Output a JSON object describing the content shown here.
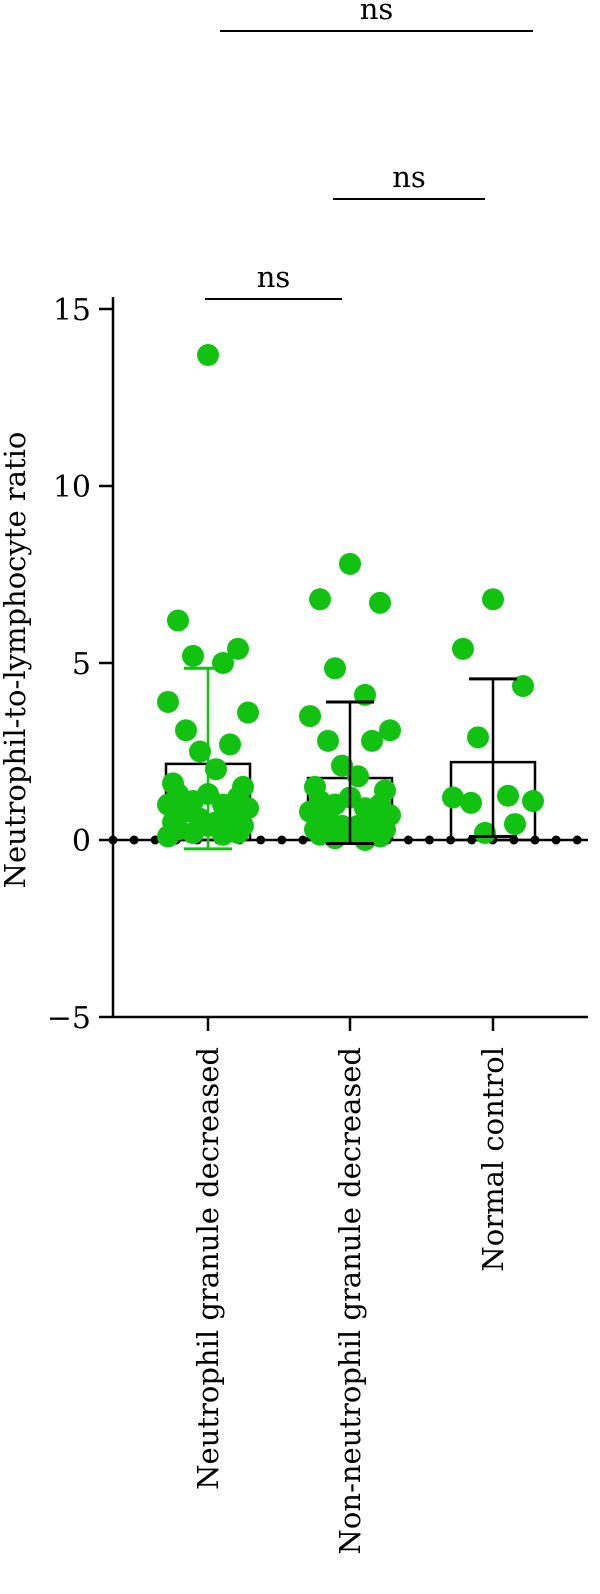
{
  "chart_data": {
    "type": "bar",
    "title": "",
    "xlabel": "",
    "ylabel": "Neutrophil-to-lymphocyte ratio",
    "ylim": [
      -5,
      15
    ],
    "yticks": [
      -5,
      0,
      5,
      10,
      15
    ],
    "ytick_labels": [
      "−5",
      "0",
      "5",
      "10",
      "15"
    ],
    "categories": [
      "Neutrophil granule decreased",
      "Non-neutrophil granule decreased",
      "Normal control"
    ],
    "series": [
      {
        "values": [
          2.15,
          1.75,
          2.2
        ],
        "error": [
          {
            "low": -0.25,
            "high": 4.85
          },
          {
            "low": -0.1,
            "high": 3.9
          },
          {
            "low": 0.1,
            "high": 4.55
          }
        ],
        "points": [
          [
            13.7,
            6.2,
            5.4,
            5.2,
            5.0,
            3.9,
            3.6,
            3.1,
            2.7,
            2.5,
            2.0,
            1.6,
            1.5,
            1.3,
            1.3,
            1.2,
            1.1,
            1.0,
            1.0,
            0.9,
            0.8,
            0.7,
            0.6,
            0.5,
            0.5,
            0.4,
            0.4,
            0.3,
            0.2,
            0.2,
            0.15,
            0.1
          ],
          [
            7.8,
            6.8,
            6.7,
            4.85,
            4.1,
            3.5,
            3.1,
            2.8,
            2.8,
            2.1,
            1.8,
            1.5,
            1.4,
            1.2,
            1.1,
            1.0,
            1.0,
            0.9,
            0.8,
            0.7,
            0.6,
            0.5,
            0.4,
            0.4,
            0.3,
            0.3,
            0.2,
            0.15,
            0.1,
            0.05,
            0.0
          ],
          [
            6.8,
            5.4,
            4.35,
            2.9,
            1.25,
            1.2,
            1.1,
            1.05,
            0.45,
            0.2
          ]
        ]
      }
    ],
    "zero_line": "dotted",
    "comparisons": [
      {
        "from": 0,
        "to": 1,
        "label": "ns"
      },
      {
        "from": 1,
        "to": 2,
        "label": "ns"
      },
      {
        "from": 0,
        "to": 2,
        "label": "ns"
      }
    ],
    "colors": {
      "points": "#11c211",
      "error_group_1": "#11c211",
      "bars": "#000000"
    }
  }
}
